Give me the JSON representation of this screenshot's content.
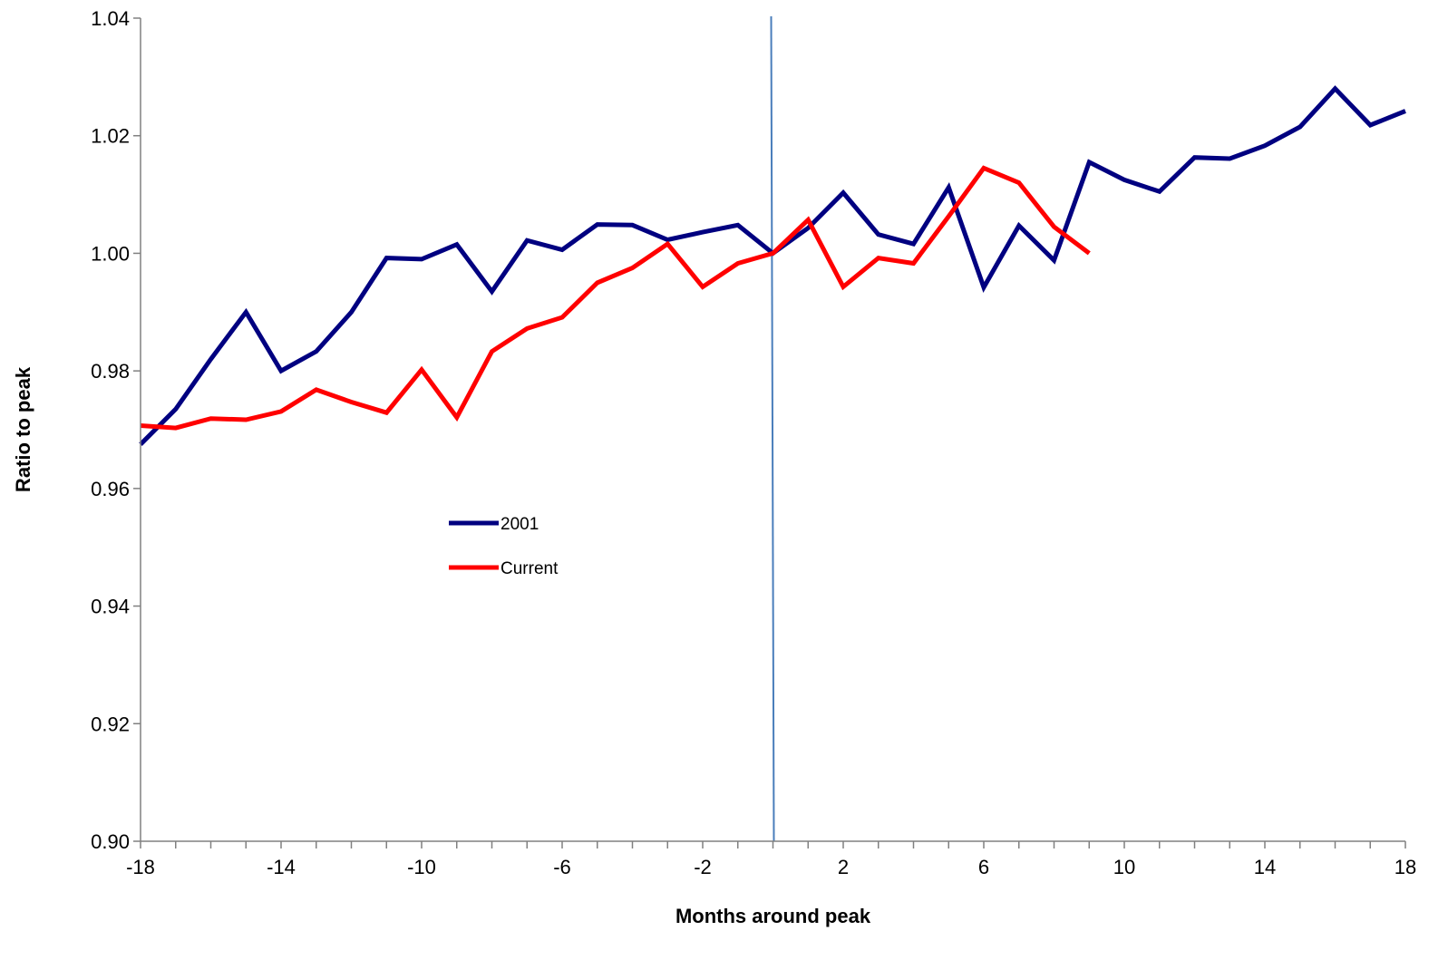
{
  "chart_data": {
    "type": "line",
    "title": "",
    "xlabel": "Months around peak",
    "ylabel": "Ratio to peak",
    "xlim": [
      -18,
      18
    ],
    "ylim": [
      0.9,
      1.04
    ],
    "x_ticks": [
      "-18",
      "-14",
      "-10",
      "-6",
      "-2",
      "2",
      "6",
      "10",
      "14",
      "18"
    ],
    "y_ticks": [
      "0.90",
      "0.92",
      "0.94",
      "0.96",
      "0.98",
      "1.00",
      "1.02",
      "1.04"
    ],
    "grid": false,
    "reference_line_x": 0,
    "legend_position": "center-left",
    "series": [
      {
        "name": "2001",
        "color": "#000080",
        "x": [
          -18,
          -17,
          -16,
          -15,
          -14,
          -13,
          -12,
          -11,
          -10,
          -9,
          -8,
          -7,
          -6,
          -5,
          -4,
          -3,
          -2,
          -1,
          0,
          1,
          2,
          3,
          4,
          5,
          6,
          7,
          8,
          9,
          10,
          11,
          12,
          13,
          14,
          15,
          16,
          17,
          18
        ],
        "values": [
          0.9675,
          0.9735,
          0.982,
          0.99,
          0.98,
          0.9833,
          0.99,
          0.9992,
          0.999,
          1.0015,
          0.9935,
          1.0022,
          1.0006,
          1.0049,
          1.0048,
          1.0023,
          1.0036,
          1.0048,
          1.0,
          1.0043,
          1.0103,
          1.0032,
          1.0016,
          1.0112,
          0.9942,
          1.0047,
          0.9988,
          1.0155,
          1.0125,
          1.0105,
          1.0163,
          1.0161,
          1.0183,
          1.0215,
          1.028,
          1.0218,
          1.0242
        ]
      },
      {
        "name": "Current",
        "color": "#ff0000",
        "x": [
          -18,
          -17,
          -16,
          -15,
          -14,
          -13,
          -12,
          -11,
          -10,
          -9,
          -8,
          -7,
          -6,
          -5,
          -4,
          -3,
          -2,
          -1,
          0,
          1,
          2,
          3,
          4,
          5,
          6,
          7,
          8,
          9
        ],
        "values": [
          0.9707,
          0.9703,
          0.9719,
          0.9717,
          0.9731,
          0.9768,
          0.9747,
          0.9729,
          0.9802,
          0.9721,
          0.9833,
          0.9872,
          0.9891,
          0.995,
          0.9975,
          1.0016,
          0.9943,
          0.9983,
          1.0,
          1.0057,
          0.9943,
          0.9992,
          0.9983,
          1.0063,
          1.0145,
          1.012,
          1.0045,
          1.0
        ]
      }
    ]
  }
}
